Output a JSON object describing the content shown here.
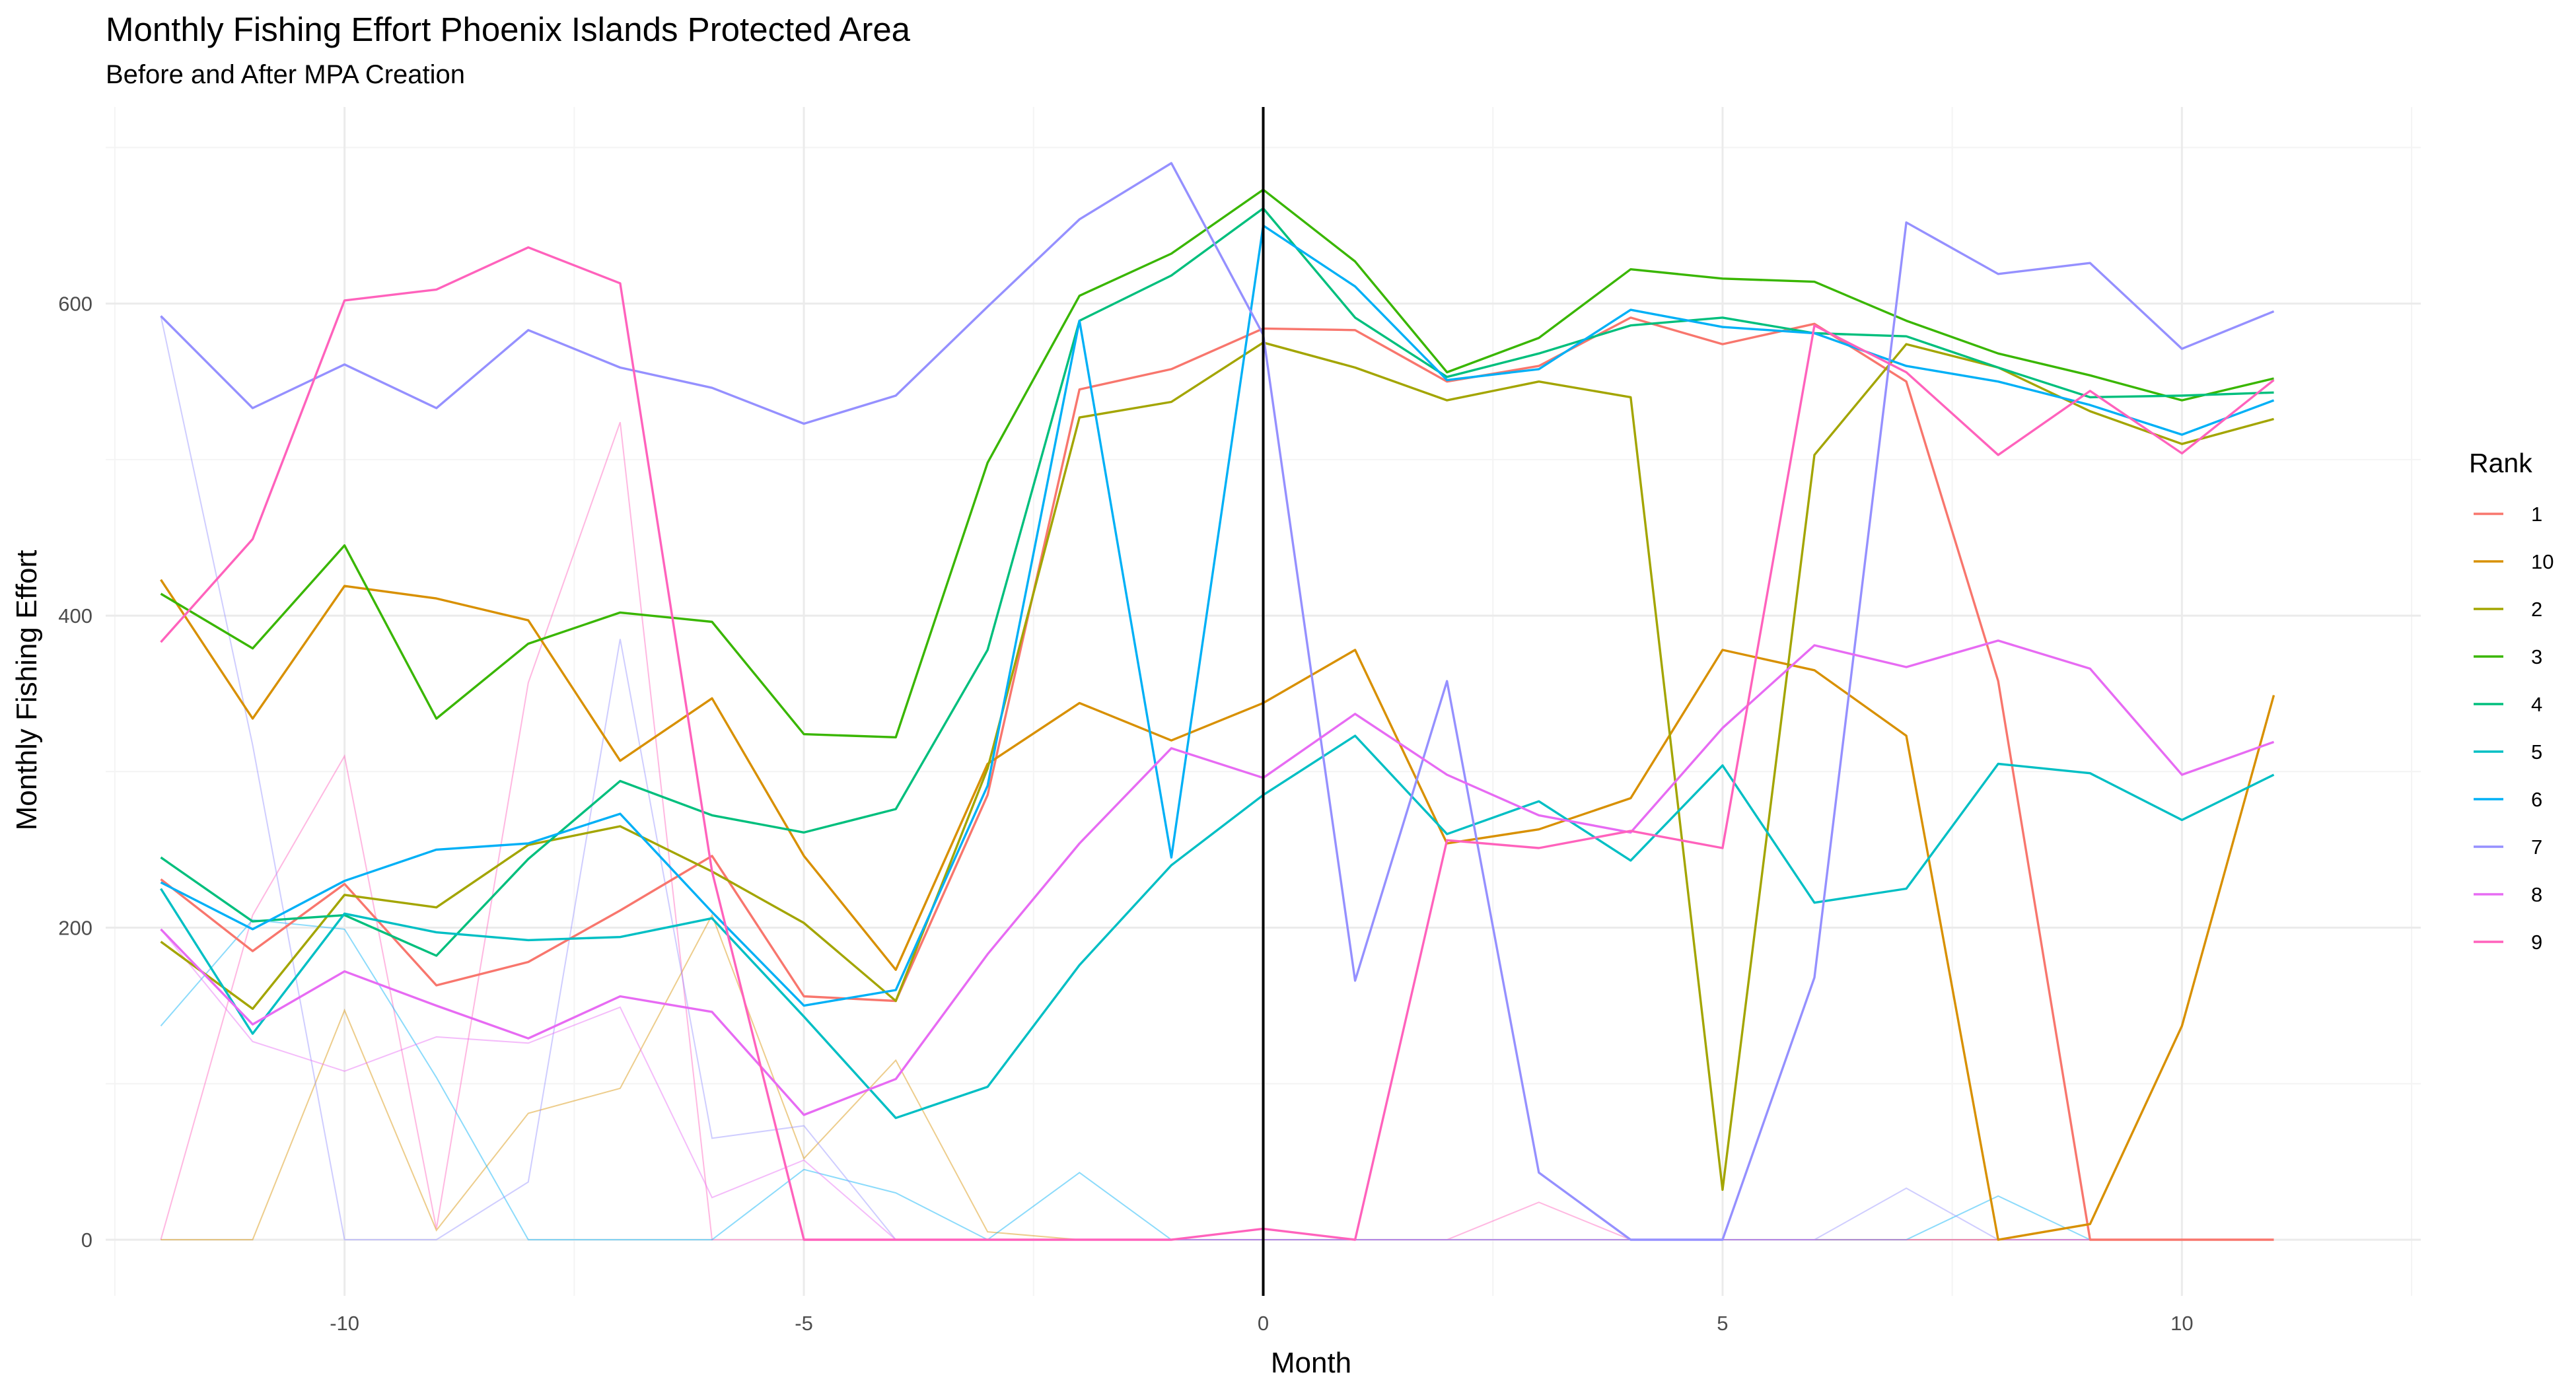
{
  "chart_data": {
    "type": "line",
    "title": "Monthly Fishing Effort Phoenix Islands Protected Area",
    "subtitle": "Before and After MPA Creation",
    "xlabel": "Month",
    "ylabel": "Monthly Fishing Effort",
    "xlim": [
      -12.6,
      12.6
    ],
    "ylim": [
      -36,
      726
    ],
    "x_ticks": [
      -10,
      -5,
      0,
      5,
      10
    ],
    "x_tick_labels": [
      "-10",
      "-5",
      "0",
      "5",
      "10"
    ],
    "y_ticks": [
      0,
      200,
      400,
      600
    ],
    "y_tick_labels": [
      "0",
      "200",
      "400",
      "600"
    ],
    "grid": true,
    "reference_line_x": 0,
    "legend": {
      "title": "Rank",
      "position": "right"
    },
    "x": [
      -12,
      -11,
      -10,
      -9,
      -8,
      -7,
      -6,
      -5,
      -4,
      -3,
      -2,
      -1,
      0,
      1,
      2,
      3,
      4,
      5,
      6,
      7,
      8,
      9,
      10,
      11
    ],
    "series": [
      {
        "name": "1",
        "color": "#F8766D",
        "values": [
          231,
          185,
          228,
          163,
          178,
          211,
          246,
          156,
          153,
          285,
          545,
          558,
          584,
          583,
          550,
          560,
          591,
          574,
          587,
          550,
          358,
          0,
          0,
          0
        ]
      },
      {
        "name": "10",
        "color": "#D89000",
        "values": [
          423,
          334,
          419,
          411,
          397,
          307,
          347,
          246,
          173,
          305,
          344,
          320,
          344,
          378,
          254,
          263,
          283,
          378,
          365,
          323,
          0,
          10,
          137,
          349
        ]
      },
      {
        "name": "2",
        "color": "#A3A500",
        "values": [
          191,
          148,
          221,
          213,
          253,
          265,
          236,
          203,
          153,
          302,
          527,
          537,
          575,
          559,
          538,
          550,
          540,
          32,
          503,
          574,
          559,
          531,
          510,
          526
        ]
      },
      {
        "name": "3",
        "color": "#39B600",
        "values": [
          414,
          379,
          445,
          334,
          382,
          402,
          396,
          324,
          322,
          498,
          605,
          632,
          673,
          627,
          556,
          578,
          622,
          616,
          614,
          589,
          568,
          554,
          538,
          552
        ]
      },
      {
        "name": "4",
        "color": "#00BF7D",
        "values": [
          245,
          204,
          208,
          182,
          244,
          294,
          272,
          261,
          276,
          378,
          589,
          618,
          661,
          591,
          553,
          568,
          586,
          591,
          581,
          579,
          559,
          540,
          541,
          543
        ]
      },
      {
        "name": "5",
        "color": "#00BFC4",
        "values": [
          225,
          132,
          209,
          197,
          192,
          194,
          206,
          143,
          78,
          98,
          176,
          240,
          285,
          323,
          260,
          281,
          243,
          304,
          216,
          225,
          305,
          299,
          269,
          298
        ]
      },
      {
        "name": "6",
        "color": "#00B0F6",
        "values": [
          229,
          199,
          230,
          250,
          254,
          273,
          210,
          150,
          160,
          291,
          589,
          245,
          650,
          611,
          551,
          558,
          596,
          585,
          581,
          560,
          550,
          535,
          516,
          538
        ]
      },
      {
        "name": "7",
        "color": "#9590FF",
        "values": [
          592,
          533,
          561,
          533,
          583,
          559,
          546,
          523,
          541,
          598,
          654,
          690,
          580,
          166,
          358,
          43,
          0,
          0,
          168,
          652,
          619,
          626,
          571,
          595
        ]
      },
      {
        "name": "8",
        "color": "#E76BF3",
        "values": [
          199,
          138,
          172,
          150,
          129,
          156,
          146,
          80,
          103,
          183,
          254,
          315,
          296,
          337,
          298,
          272,
          261,
          328,
          381,
          367,
          384,
          366,
          298,
          319
        ]
      },
      {
        "name": "9",
        "color": "#FF62BC",
        "values": [
          383,
          449,
          602,
          609,
          636,
          613,
          236,
          0,
          0,
          0,
          0,
          0,
          7,
          0,
          256,
          251,
          262,
          251,
          586,
          556,
          503,
          544,
          504,
          551
        ]
      }
    ],
    "faint_series": [
      {
        "color": "#FF62BC",
        "values": [
          0,
          208,
          310,
          7,
          357,
          524,
          0,
          0,
          0,
          0,
          0,
          0,
          0,
          0,
          0,
          24,
          0,
          0,
          0,
          0,
          0,
          0,
          0,
          0
        ]
      },
      {
        "color": "#D89000",
        "values": [
          0,
          0,
          147,
          6,
          81,
          97,
          208,
          52,
          115,
          5,
          0,
          0,
          0,
          0,
          0,
          0,
          0,
          0,
          0,
          0,
          0,
          0,
          0,
          0
        ]
      },
      {
        "color": "#00B0F6",
        "values": [
          137,
          205,
          199,
          104,
          0,
          0,
          0,
          45,
          30,
          0,
          43,
          0,
          0,
          0,
          0,
          0,
          0,
          0,
          0,
          0,
          28,
          0,
          0,
          0
        ]
      },
      {
        "color": "#9590FF",
        "values": [
          592,
          317,
          0,
          0,
          37,
          385,
          65,
          73,
          0,
          0,
          0,
          0,
          0,
          0,
          0,
          0,
          0,
          0,
          0,
          33,
          0,
          0,
          0,
          0
        ]
      },
      {
        "color": "#E76BF3",
        "values": [
          199,
          127,
          108,
          130,
          126,
          149,
          27,
          51,
          0,
          0,
          0,
          0,
          0,
          0,
          0,
          0,
          0,
          0,
          0,
          0,
          0,
          0,
          0,
          0
        ]
      }
    ]
  }
}
